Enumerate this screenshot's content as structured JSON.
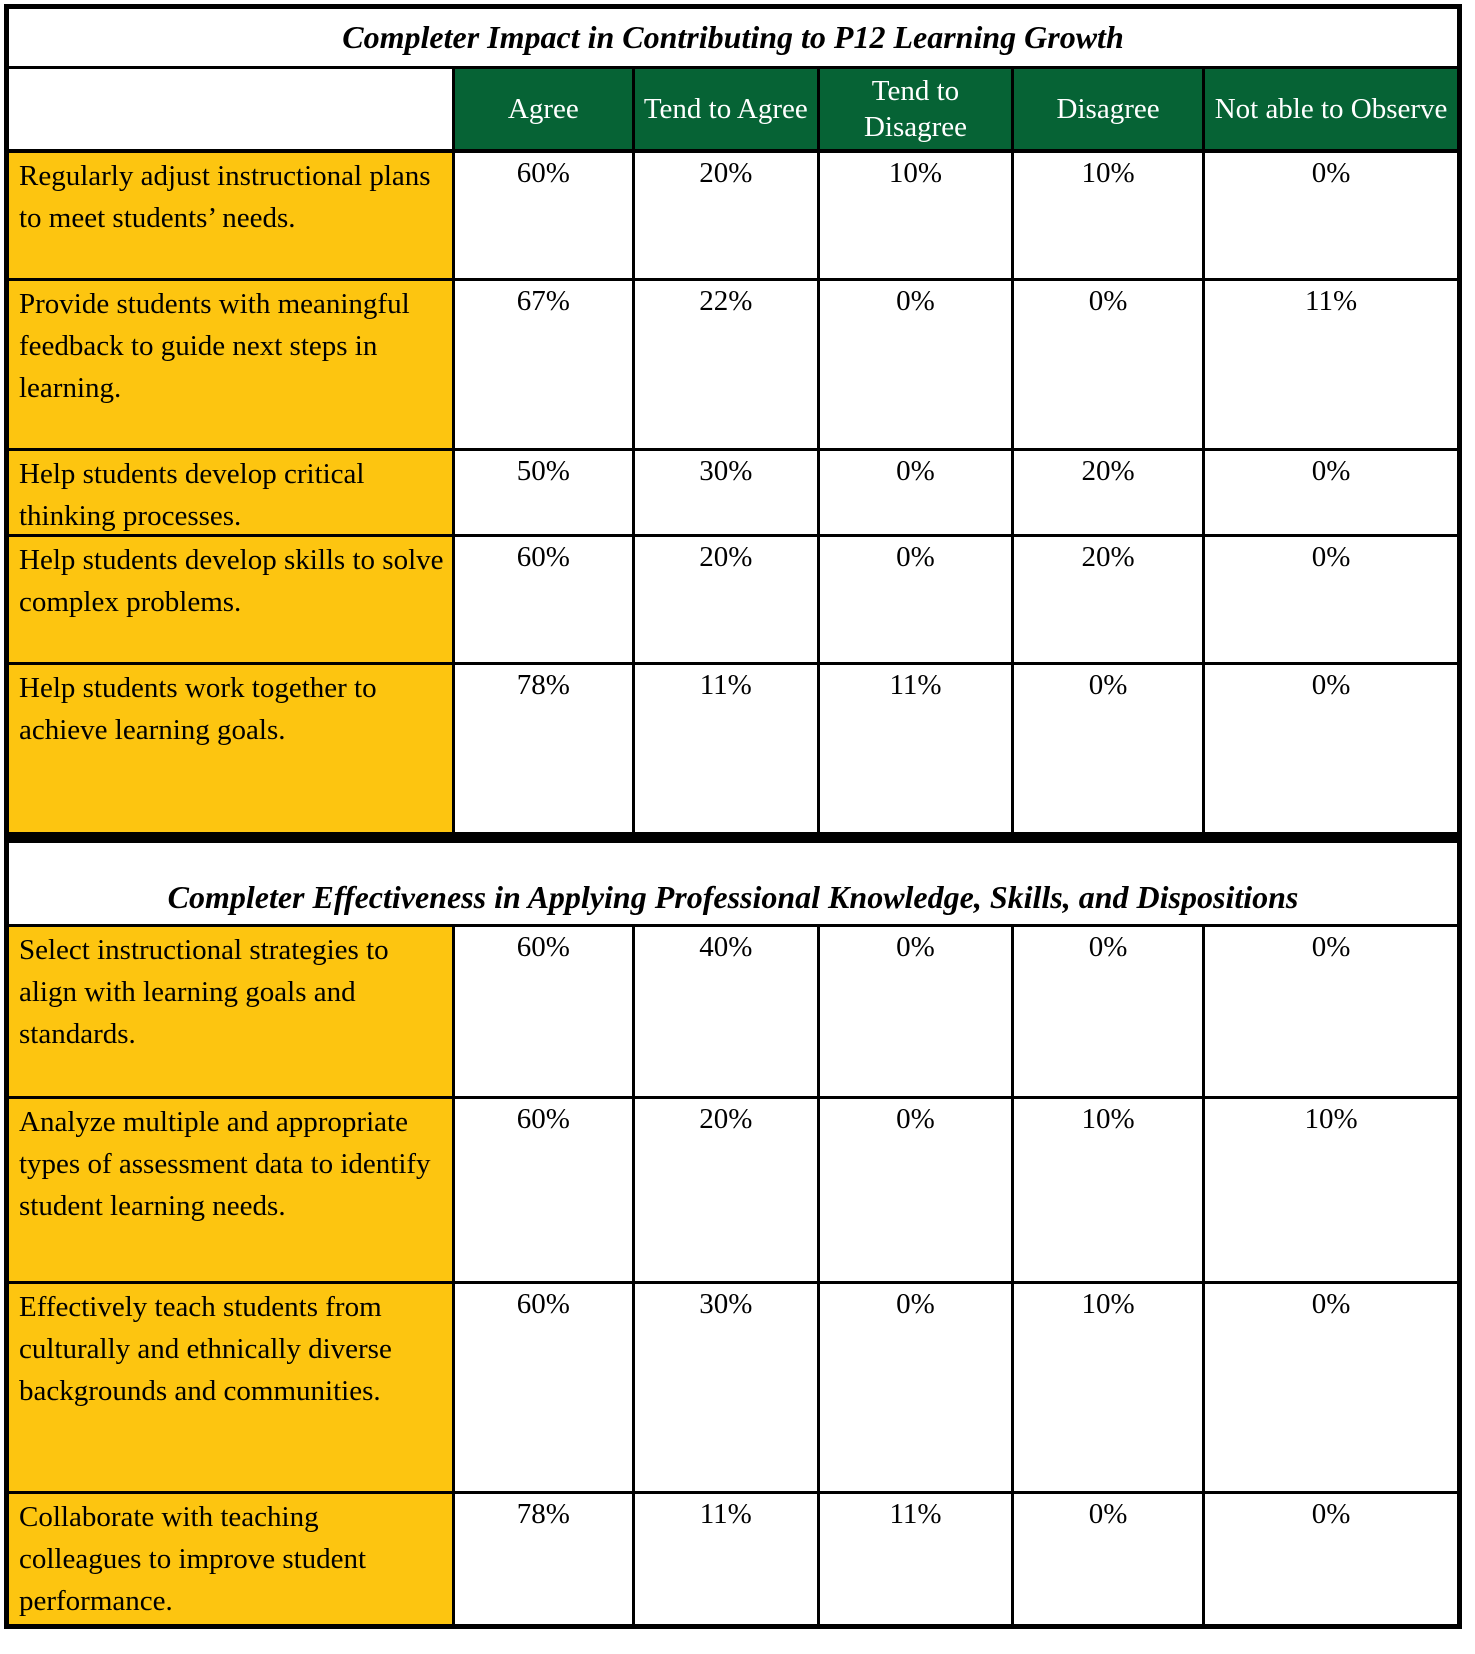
{
  "colors": {
    "header_green": "#066335",
    "label_yellow": "#FDC510",
    "border_black": "#000000"
  },
  "table1": {
    "title": "Completer Impact in Contributing to P12 Learning Growth",
    "headers": [
      "Agree",
      "Tend to Agree",
      "Tend to Disagree",
      "Disagree",
      "Not able to Observe"
    ],
    "rows": [
      {
        "label": "Regularly adjust instructional plans to meet students’ needs.",
        "values": [
          "60%",
          "20%",
          "10%",
          "10%",
          "0%"
        ]
      },
      {
        "label": "Provide students with meaningful feedback to guide next steps in learning.",
        "values": [
          "67%",
          "22%",
          "0%",
          "0%",
          "11%"
        ]
      },
      {
        "label": "Help students develop critical thinking processes.",
        "values": [
          "50%",
          "30%",
          "0%",
          "20%",
          "0%"
        ]
      },
      {
        "label": "Help students develop skills to solve complex problems.",
        "values": [
          "60%",
          "20%",
          "0%",
          "20%",
          "0%"
        ]
      },
      {
        "label": "Help students work together to achieve learning goals.",
        "values": [
          "78%",
          "11%",
          "11%",
          "0%",
          "0%"
        ]
      }
    ]
  },
  "table2": {
    "title": "Completer Effectiveness in Applying Professional Knowledge, Skills, and Dispositions",
    "rows": [
      {
        "label": "Select instructional strategies to align with learning goals and standards.",
        "values": [
          "60%",
          "40%",
          "0%",
          "0%",
          "0%"
        ]
      },
      {
        "label": "Analyze multiple and appropriate types of assessment data to identify student learning needs.",
        "values": [
          "60%",
          "20%",
          "0%",
          "10%",
          "10%"
        ]
      },
      {
        "label": "Effectively teach students from culturally and ethnically diverse backgrounds and communities.",
        "values": [
          "60%",
          "30%",
          "0%",
          "10%",
          "0%"
        ]
      },
      {
        "label": "Collaborate with teaching colleagues to improve student performance.",
        "values": [
          "78%",
          "11%",
          "11%",
          "0%",
          "0%"
        ]
      }
    ]
  }
}
